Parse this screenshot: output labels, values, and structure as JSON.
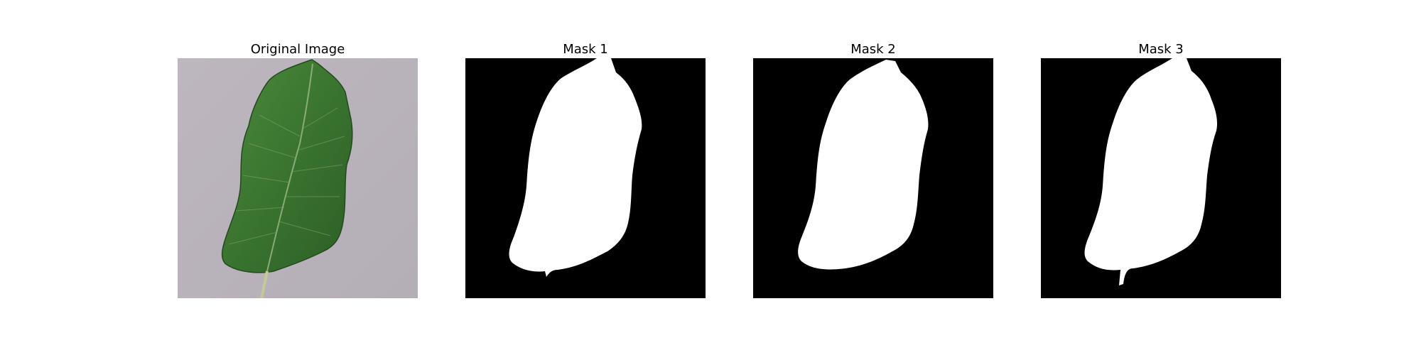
{
  "figure": {
    "panels": [
      {
        "title": "Original Image",
        "kind": "photo",
        "subject": "green leaf on gray background"
      },
      {
        "title": "Mask 1",
        "kind": "mask"
      },
      {
        "title": "Mask 2",
        "kind": "mask"
      },
      {
        "title": "Mask 3",
        "kind": "mask"
      }
    ]
  },
  "colors": {
    "background": "#ffffff",
    "mask_bg": "#000000",
    "mask_fg": "#ffffff",
    "leaf": "#3f7a33",
    "photo_bg": "#b9b3ba"
  }
}
